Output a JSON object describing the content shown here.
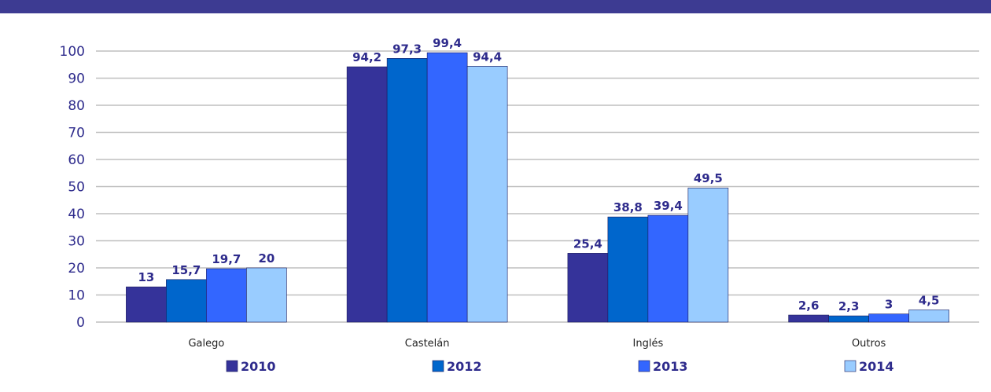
{
  "chart_data": {
    "type": "bar",
    "categories": [
      "Galego",
      "Castelán",
      "Inglés",
      "Outros"
    ],
    "series": [
      {
        "name": "2010",
        "color": "#35339a",
        "values": [
          13,
          94.2,
          25.4,
          2.6
        ],
        "labels": [
          "13",
          "94,2",
          "25,4",
          "2,6"
        ]
      },
      {
        "name": "2012",
        "color": "#0066cc",
        "values": [
          15.7,
          97.3,
          38.8,
          2.3
        ],
        "labels": [
          "15,7",
          "97,3",
          "38,8",
          "2,3"
        ]
      },
      {
        "name": "2013",
        "color": "#3366ff",
        "values": [
          19.7,
          99.4,
          39.4,
          3
        ],
        "labels": [
          "19,7",
          "99,4",
          "39,4",
          "3"
        ]
      },
      {
        "name": "2014",
        "color": "#99ccff",
        "values": [
          20,
          94.4,
          49.5,
          4.5
        ],
        "labels": [
          "20",
          "94,4",
          "49,5",
          "4,5"
        ]
      }
    ],
    "yticks": [
      "0",
      "10",
      "20",
      "30",
      "40",
      "50",
      "60",
      "70",
      "80",
      "90",
      "100"
    ],
    "ylim": [
      0,
      100
    ],
    "grid": true,
    "legend_position": "bottom"
  },
  "colors": {
    "top_rule": "#3d3b92",
    "axis_text": "#2e2b8c",
    "gridline": "#bfbfbf"
  }
}
